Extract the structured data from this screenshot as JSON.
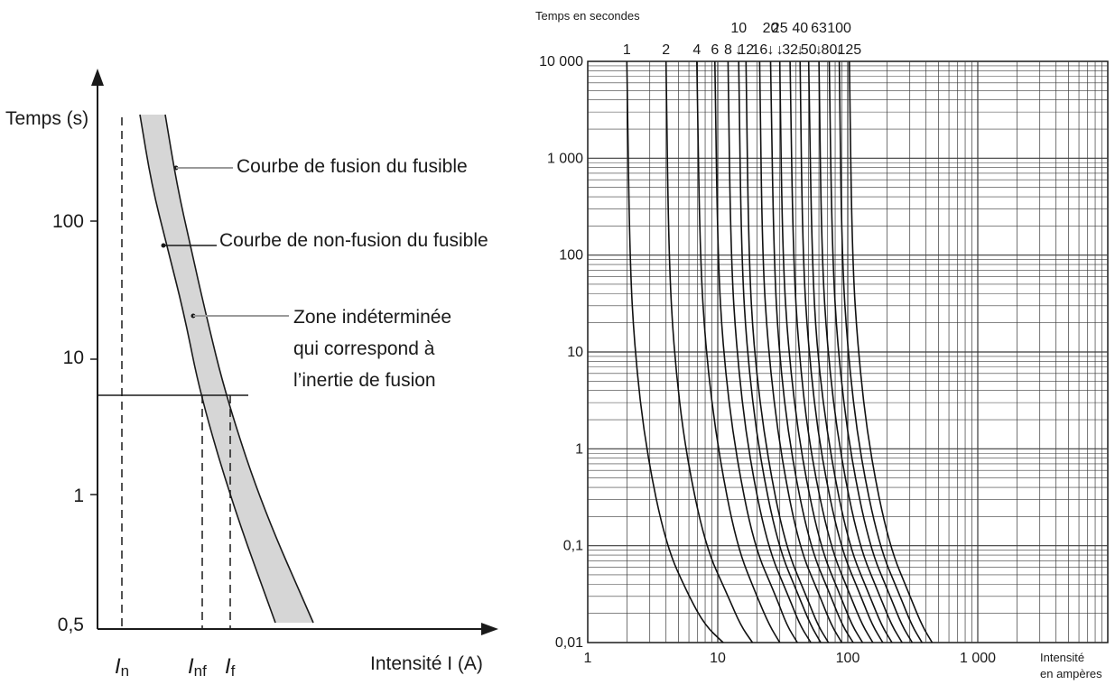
{
  "chart_data": [
    {
      "type": "line",
      "title": "",
      "ylabel": "Temps (s)",
      "xlabel": "Intensité I (A)",
      "y_scale": "log",
      "y_ticks": [
        "0,5",
        "1",
        "10",
        "100"
      ],
      "x_ticks": [
        "In",
        "Inf",
        "If"
      ],
      "x_tick_parts": [
        {
          "main": "I",
          "sub": "n"
        },
        {
          "main": "I",
          "sub": "nf"
        },
        {
          "main": "I",
          "sub": "f"
        }
      ],
      "series": [
        {
          "name": "Courbe de fusion du fusible"
        },
        {
          "name": "Courbe de non-fusion du fusible"
        }
      ],
      "annotations": [
        {
          "lines": [
            "Courbe de fusion du fusible"
          ]
        },
        {
          "lines": [
            "Courbe de non-fusion du fusible"
          ]
        },
        {
          "lines": [
            "Zone indéterminée",
            "qui correspond à",
            "l’inertie de fusion"
          ]
        }
      ],
      "band_color": "#d6d6d6"
    },
    {
      "type": "line",
      "title": "",
      "ylabel": "Temps en secondes",
      "xlabel": "Intensité en ampères",
      "xlabel_lines": [
        "Intensité",
        "en ampères"
      ],
      "x_scale": "log",
      "y_scale": "log",
      "xlim": [
        1,
        10000
      ],
      "ylim": [
        0.01,
        10000
      ],
      "x_tick_labels": [
        "1",
        "10",
        "100",
        "1 000"
      ],
      "x_tick_values": [
        1,
        10,
        100,
        1000
      ],
      "y_tick_labels": [
        "0,01",
        "0,1",
        "1",
        "10",
        "100",
        "1 000",
        "10 000"
      ],
      "y_tick_values": [
        0.01,
        0.1,
        1,
        10,
        100,
        1000,
        10000
      ],
      "grid": true,
      "series": [
        {
          "name": "1",
          "rating": 1,
          "x": [
            2.0,
            2.1,
            2.3,
            2.8,
            4.0,
            6.0,
            8.0,
            11.0
          ],
          "y": [
            10000,
            100,
            10,
            1,
            0.1,
            0.03,
            0.015,
            0.01
          ]
        },
        {
          "name": "2",
          "rating": 2,
          "x": [
            4.0,
            4.2,
            4.6,
            5.6,
            8.0,
            12.0,
            15.0,
            18.5
          ],
          "y": [
            10000,
            100,
            10,
            1,
            0.1,
            0.03,
            0.015,
            0.01
          ]
        },
        {
          "name": "4",
          "rating": 4,
          "x": [
            6.9,
            7.3,
            8.1,
            10,
            14,
            20,
            25,
            30
          ],
          "y": [
            10000,
            100,
            10,
            1,
            0.1,
            0.03,
            0.015,
            0.01
          ]
        },
        {
          "name": "6",
          "rating": 6,
          "x": [
            9.5,
            10,
            11,
            13.5,
            19,
            28,
            34,
            41
          ],
          "y": [
            10000,
            100,
            10,
            1,
            0.1,
            0.03,
            0.015,
            0.01
          ]
        },
        {
          "name": "8",
          "rating": 8,
          "x": [
            12,
            12.6,
            14,
            17,
            24,
            35,
            43,
            52
          ],
          "y": [
            10000,
            100,
            10,
            1,
            0.1,
            0.03,
            0.015,
            0.01
          ]
        },
        {
          "name": "10",
          "rating": 10,
          "x": [
            14.5,
            15.2,
            16.8,
            20.5,
            29,
            42,
            52,
            62
          ],
          "y": [
            10000,
            100,
            10,
            1,
            0.1,
            0.03,
            0.015,
            0.01
          ]
        },
        {
          "name": "12",
          "rating": 12,
          "x": [
            16.5,
            17.3,
            19,
            23.5,
            33,
            48,
            59,
            71
          ],
          "y": [
            10000,
            100,
            10,
            1,
            0.1,
            0.03,
            0.015,
            0.01
          ]
        },
        {
          "name": "16",
          "rating": 16,
          "x": [
            21,
            22,
            24.5,
            30,
            42,
            61,
            75,
            90
          ],
          "y": [
            10000,
            100,
            10,
            1,
            0.1,
            0.03,
            0.015,
            0.01
          ]
        },
        {
          "name": "20",
          "rating": 20,
          "x": [
            25.5,
            27,
            29.5,
            36,
            51,
            74,
            91,
            110
          ],
          "y": [
            10000,
            100,
            10,
            1,
            0.1,
            0.03,
            0.015,
            0.01
          ]
        },
        {
          "name": "25",
          "rating": 25,
          "x": [
            30,
            31.5,
            35,
            43,
            61,
            88,
            108,
            130
          ],
          "y": [
            10000,
            100,
            10,
            1,
            0.1,
            0.03,
            0.015,
            0.01
          ]
        },
        {
          "name": "32",
          "rating": 32,
          "x": [
            36,
            38,
            42,
            51,
            73,
            105,
            130,
            156
          ],
          "y": [
            10000,
            100,
            10,
            1,
            0.1,
            0.03,
            0.015,
            0.01
          ]
        },
        {
          "name": "40",
          "rating": 40,
          "x": [
            43,
            45,
            50,
            61,
            87,
            126,
            155,
            186
          ],
          "y": [
            10000,
            100,
            10,
            1,
            0.1,
            0.03,
            0.015,
            0.01
          ]
        },
        {
          "name": "50",
          "rating": 50,
          "x": [
            50,
            53,
            58,
            72,
            102,
            148,
            182,
            219
          ],
          "y": [
            10000,
            100,
            10,
            1,
            0.1,
            0.03,
            0.015,
            0.01
          ]
        },
        {
          "name": "63",
          "rating": 63,
          "x": [
            60,
            63,
            70,
            86,
            122,
            177,
            218,
            262
          ],
          "y": [
            10000,
            100,
            10,
            1,
            0.1,
            0.03,
            0.015,
            0.01
          ]
        },
        {
          "name": "80",
          "rating": 80,
          "x": [
            72,
            76,
            84,
            103,
            146,
            212,
            261,
            313
          ],
          "y": [
            10000,
            100,
            10,
            1,
            0.1,
            0.03,
            0.015,
            0.01
          ]
        },
        {
          "name": "100",
          "rating": 100,
          "x": [
            86,
            90,
            100,
            122,
            174,
            253,
            311,
            373
          ],
          "y": [
            10000,
            100,
            10,
            1,
            0.1,
            0.03,
            0.015,
            0.01
          ]
        },
        {
          "name": "125",
          "rating": 125,
          "x": [
            103,
            108,
            120,
            146,
            208,
            302,
            372,
            446
          ],
          "y": [
            10000,
            100,
            10,
            1,
            0.1,
            0.03,
            0.015,
            0.01
          ]
        }
      ],
      "rating_labels_row1": [
        "1",
        "2",
        "4",
        "6",
        "8",
        "12",
        "16",
        "32",
        "50",
        "80",
        "125"
      ],
      "rating_labels_row2": [
        "10",
        "20",
        "25",
        "40",
        "63",
        "100"
      ],
      "arrow_glyph": "↓"
    }
  ]
}
